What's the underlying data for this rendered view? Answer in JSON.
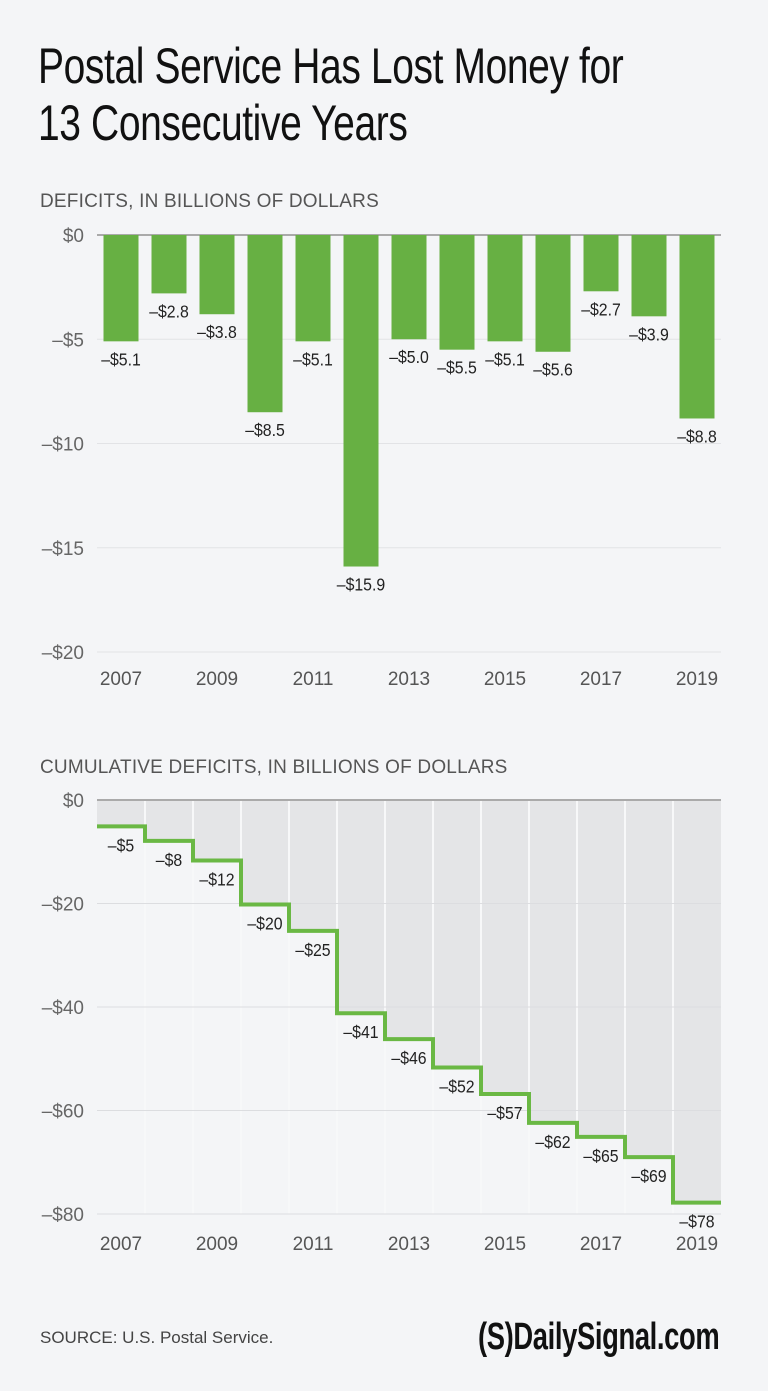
{
  "title_line1": "Postal Service Has Lost Money for",
  "title_line2": "13 Consecutive Years",
  "source": "SOURCE: U.S. Postal Service.",
  "logo": "(S)DailySignal.com",
  "chart_data": [
    {
      "type": "bar",
      "title": "DEFICITS, IN BILLIONS OF DOLLARS",
      "categories": [
        "2007",
        "2008",
        "2009",
        "2010",
        "2011",
        "2012",
        "2013",
        "2014",
        "2015",
        "2016",
        "2017",
        "2018",
        "2019"
      ],
      "x_tick_labels": [
        "2007",
        "2009",
        "2011",
        "2013",
        "2015",
        "2017",
        "2019"
      ],
      "values": [
        -5.1,
        -2.8,
        -3.8,
        -8.5,
        -5.1,
        -15.9,
        -5.0,
        -5.5,
        -5.1,
        -5.6,
        -2.7,
        -3.9,
        -8.8
      ],
      "data_labels": [
        "–$5.1",
        "–$2.8",
        "–$3.8",
        "–$8.5",
        "–$5.1",
        "–$15.9",
        "–$5.0",
        "–$5.5",
        "–$5.1",
        "–$5.6",
        "–$2.7",
        "–$3.9",
        "–$8.8"
      ],
      "y_ticks": [
        0,
        -5,
        -10,
        -15,
        -20
      ],
      "y_tick_labels": [
        "$0",
        "–$5",
        "–$10",
        "–$15",
        "–$20"
      ],
      "ylim": [
        -20,
        0
      ],
      "grid": true,
      "color": "#67b043"
    },
    {
      "type": "area",
      "style": "step",
      "title": "CUMULATIVE DEFICITS, IN BILLIONS OF DOLLARS",
      "categories": [
        "2007",
        "2008",
        "2009",
        "2010",
        "2011",
        "2012",
        "2013",
        "2014",
        "2015",
        "2016",
        "2017",
        "2018",
        "2019"
      ],
      "x_tick_labels": [
        "2007",
        "2009",
        "2011",
        "2013",
        "2015",
        "2017",
        "2019"
      ],
      "values": [
        -5.1,
        -7.9,
        -11.7,
        -20.2,
        -25.3,
        -41.2,
        -46.2,
        -51.7,
        -56.8,
        -62.4,
        -65.1,
        -69.0,
        -77.8
      ],
      "data_labels": [
        "–$5",
        "–$8",
        "–$12",
        "–$20",
        "–$25",
        "–$41",
        "–$46",
        "–$52",
        "–$57",
        "–$62",
        "–$65",
        "–$69",
        "–$78"
      ],
      "y_ticks": [
        0,
        -20,
        -40,
        -60,
        -80
      ],
      "y_tick_labels": [
        "$0",
        "–$20",
        "–$40",
        "–$60",
        "–$80"
      ],
      "ylim": [
        -80,
        0
      ],
      "grid": true,
      "color": "#6ab844",
      "fill_color": "#e4e5e7"
    }
  ]
}
